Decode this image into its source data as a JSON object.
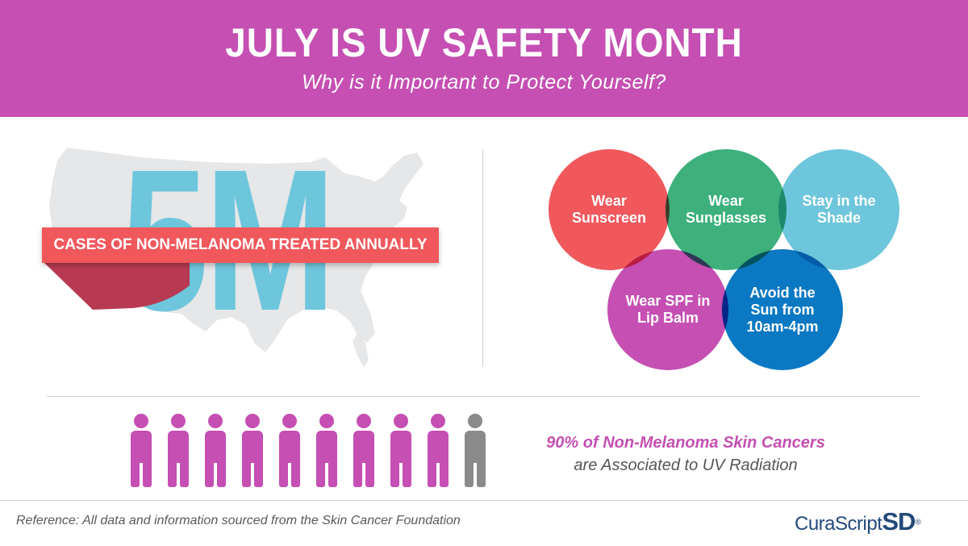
{
  "header": {
    "title": "JULY IS UV SAFETY MONTH",
    "subtitle": "Why is it Important to Protect Yourself?"
  },
  "stat_cases": {
    "number": "5M",
    "label": "CASES OF NON-MELANOMA TREATED ANNUALLY"
  },
  "tips": [
    {
      "label": "Wear Sunscreen",
      "color": "#f0585c"
    },
    {
      "label": "Wear Sunglasses",
      "color": "#3db07c"
    },
    {
      "label": "Stay in the Shade",
      "color": "#6ec6dc"
    },
    {
      "label": "Wear SPF in Lip Balm",
      "color": "#c54fb2"
    },
    {
      "label": "Avoid the Sun from 10am-4pm",
      "color": "#0a78c2"
    }
  ],
  "people_stat": {
    "highlight": "90% of Non-Melanoma Skin Cancers",
    "rest": "are Associated to UV Radiation",
    "share_associated": 0.9,
    "highlight_color": "#c54fb2",
    "other_color": "#8a8a8a"
  },
  "footer": {
    "reference": "Reference: All data and information sourced from the Skin Cancer Foundation",
    "logo_part1": "CuraScript",
    "logo_part2": "SD",
    "logo_mark": "®"
  }
}
